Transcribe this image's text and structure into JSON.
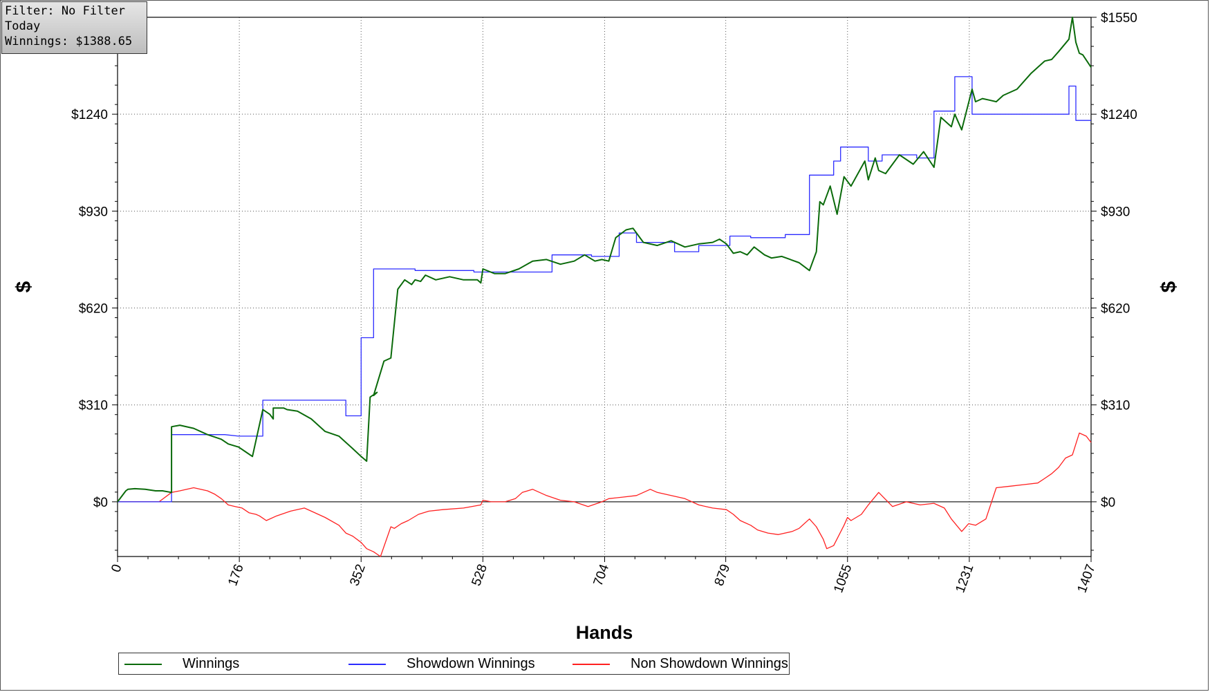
{
  "info": {
    "filter": "Filter: No Filter",
    "period": "Today",
    "winnings": "Winnings: $1388.65"
  },
  "legend": {
    "items": [
      {
        "label": "Winnings",
        "color": "#0a6a0a"
      },
      {
        "label": "Showdown Winnings",
        "color": "#2b2bff"
      },
      {
        "label": "Non Showdown Winnings",
        "color": "#ff2020"
      }
    ]
  },
  "chart_data": {
    "type": "line",
    "xlabel": "Hands",
    "ylabel": "$",
    "xlim": [
      0,
      1407
    ],
    "ylim": [
      -175,
      1550
    ],
    "x_ticks": [
      "0",
      "176",
      "352",
      "528",
      "704",
      "879",
      "1055",
      "1231",
      "1407"
    ],
    "x_tick_values": [
      0,
      176,
      352,
      528,
      704,
      879,
      1055,
      1231,
      1407
    ],
    "y_ticks": [
      "$0",
      "$310",
      "$620",
      "$930",
      "$1240",
      "$1550"
    ],
    "y_tick_values": [
      0,
      310,
      620,
      930,
      1240,
      1550
    ],
    "grid": true,
    "legend_position": "bottom",
    "series": [
      {
        "name": "Winnings",
        "color": "#0a6a0a",
        "x": [
          0,
          12,
          15,
          25,
          40,
          55,
          65,
          78,
          78,
          90,
          110,
          130,
          150,
          160,
          175,
          185,
          195,
          210,
          220,
          225,
          225,
          240,
          245,
          260,
          280,
          300,
          320,
          340,
          352,
          360,
          365,
          375,
          370,
          385,
          395,
          405,
          415,
          425,
          430,
          438,
          445,
          460,
          480,
          500,
          520,
          525,
          528,
          545,
          560,
          580,
          600,
          620,
          640,
          660,
          675,
          690,
          700,
          710,
          720,
          735,
          745,
          760,
          780,
          800,
          820,
          840,
          860,
          870,
          880,
          890,
          900,
          910,
          920,
          935,
          945,
          960,
          985,
          1000,
          1010,
          1015,
          1020,
          1030,
          1040,
          1050,
          1060,
          1080,
          1085,
          1095,
          1100,
          1110,
          1130,
          1150,
          1165,
          1180,
          1190,
          1205,
          1210,
          1220,
          1235,
          1240,
          1250,
          1260,
          1270,
          1280,
          1300,
          1320,
          1340,
          1350,
          1360,
          1375,
          1380,
          1385,
          1390,
          1395,
          1407
        ],
        "values": [
          0,
          35,
          40,
          42,
          40,
          35,
          35,
          30,
          240,
          245,
          235,
          215,
          200,
          185,
          175,
          160,
          145,
          295,
          280,
          265,
          300,
          300,
          295,
          290,
          265,
          225,
          210,
          170,
          145,
          130,
          335,
          350,
          340,
          450,
          460,
          680,
          710,
          695,
          710,
          705,
          725,
          710,
          720,
          710,
          710,
          700,
          745,
          730,
          730,
          745,
          770,
          775,
          760,
          770,
          790,
          770,
          775,
          770,
          845,
          870,
          875,
          830,
          820,
          835,
          815,
          825,
          830,
          840,
          825,
          795,
          800,
          790,
          815,
          790,
          780,
          785,
          765,
          740,
          800,
          960,
          950,
          1010,
          920,
          1040,
          1010,
          1090,
          1030,
          1100,
          1060,
          1050,
          1110,
          1080,
          1120,
          1070,
          1230,
          1200,
          1240,
          1190,
          1320,
          1280,
          1290,
          1285,
          1280,
          1300,
          1320,
          1370,
          1410,
          1415,
          1440,
          1480,
          1550,
          1470,
          1435,
          1430,
          1390
        ]
      },
      {
        "name": "Showdown Winnings",
        "color": "#2b2bff",
        "x": [
          0,
          78,
          78,
          155,
          175,
          210,
          210,
          330,
          330,
          352,
          352,
          370,
          370,
          430,
          430,
          515,
          515,
          628,
          628,
          685,
          685,
          725,
          725,
          750,
          750,
          805,
          805,
          840,
          840,
          885,
          885,
          915,
          915,
          965,
          965,
          970,
          970,
          1000,
          1000,
          1035,
          1035,
          1045,
          1045,
          1085,
          1085,
          1105,
          1105,
          1155,
          1155,
          1180,
          1180,
          1210,
          1210,
          1235,
          1235,
          1255,
          1255,
          1375,
          1375,
          1385,
          1385,
          1407
        ],
        "values": [
          0,
          0,
          215,
          215,
          210,
          210,
          325,
          325,
          275,
          275,
          525,
          525,
          745,
          745,
          740,
          740,
          735,
          735,
          790,
          790,
          785,
          785,
          860,
          860,
          830,
          830,
          800,
          800,
          820,
          820,
          850,
          850,
          845,
          845,
          855,
          855,
          855,
          855,
          1045,
          1045,
          1090,
          1090,
          1135,
          1135,
          1090,
          1090,
          1110,
          1110,
          1100,
          1100,
          1250,
          1250,
          1360,
          1360,
          1240,
          1240,
          1240,
          1240,
          1330,
          1330,
          1220,
          1220
        ]
      },
      {
        "name": "Non Showdown Winnings",
        "color": "#ff2020",
        "x": [
          0,
          10,
          20,
          30,
          45,
          60,
          78,
          90,
          100,
          110,
          120,
          130,
          140,
          150,
          160,
          170,
          180,
          190,
          200,
          205,
          215,
          230,
          250,
          270,
          280,
          300,
          320,
          330,
          340,
          352,
          360,
          370,
          380,
          395,
          400,
          410,
          420,
          435,
          450,
          470,
          500,
          525,
          528,
          540,
          560,
          575,
          585,
          600,
          620,
          640,
          660,
          680,
          700,
          710,
          730,
          750,
          770,
          780,
          800,
          820,
          840,
          860,
          880,
          890,
          900,
          915,
          925,
          940,
          955,
          975,
          985,
          1000,
          1010,
          1020,
          1025,
          1035,
          1050,
          1055,
          1060,
          1075,
          1085,
          1100,
          1120,
          1140,
          1160,
          1180,
          1195,
          1205,
          1220,
          1230,
          1240,
          1255,
          1270,
          1290,
          1310,
          1330,
          1340,
          1350,
          1360,
          1370,
          1380,
          1390,
          1400,
          1407
        ],
        "values": [
          0,
          0,
          0,
          0,
          0,
          0,
          30,
          35,
          40,
          45,
          40,
          35,
          25,
          10,
          -10,
          -15,
          -20,
          -35,
          -40,
          -45,
          -60,
          -45,
          -30,
          -20,
          -30,
          -50,
          -75,
          -100,
          -110,
          -130,
          -150,
          -160,
          -175,
          -80,
          -85,
          -70,
          -60,
          -40,
          -30,
          -25,
          -20,
          -10,
          5,
          0,
          0,
          10,
          30,
          40,
          20,
          5,
          0,
          -15,
          0,
          10,
          15,
          20,
          40,
          30,
          20,
          10,
          -10,
          -20,
          -25,
          -40,
          -60,
          -75,
          -90,
          -100,
          -105,
          -95,
          -85,
          -55,
          -80,
          -120,
          -150,
          -140,
          -75,
          -50,
          -60,
          -40,
          -10,
          30,
          -15,
          0,
          -10,
          -5,
          -20,
          -55,
          -95,
          -70,
          -75,
          -55,
          45,
          50,
          55,
          60,
          75,
          90,
          110,
          140,
          150,
          220,
          210,
          190
        ]
      }
    ]
  }
}
